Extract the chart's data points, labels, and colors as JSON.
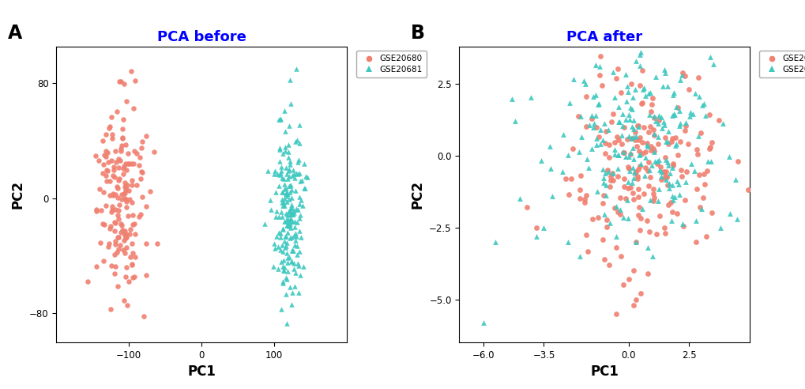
{
  "title_A": "PCA before",
  "title_B": "PCA after",
  "label_A": "A",
  "label_B": "B",
  "color_gse680": "#F08070",
  "color_gse681": "#3EC8C0",
  "legend_gse680": "GSE20680",
  "legend_gse681": "GSE20681",
  "xlabel": "PC1",
  "ylabel": "PC2",
  "before_xlim": [
    -200,
    200
  ],
  "before_ylim": [
    -100,
    105
  ],
  "before_xticks": [
    -100,
    0,
    100
  ],
  "before_yticks": [
    -80,
    0,
    80
  ],
  "after_xlim": [
    -7.0,
    5.0
  ],
  "after_ylim": [
    -6.5,
    3.8
  ],
  "after_xticks": [
    -6.0,
    -3.5,
    0.0,
    2.5
  ],
  "after_yticks": [
    -5.0,
    -2.5,
    0.0,
    2.5
  ],
  "marker_size_before": 22,
  "marker_size_after": 24,
  "seed_before_680": 42,
  "seed_before_681": 123,
  "seed_after_680": 77,
  "seed_after_681": 99,
  "n_before_680": 180,
  "n_before_681": 200,
  "n_after_680": 175,
  "n_after_681": 195
}
